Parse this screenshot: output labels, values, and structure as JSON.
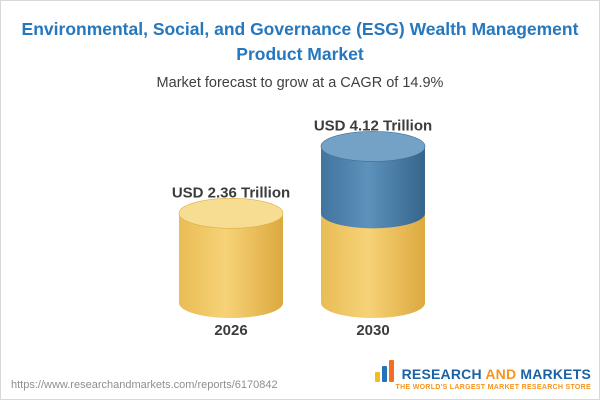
{
  "header": {
    "title_line1": "Environmental, Social, and Governance (ESG) Wealth Management",
    "title_line2": "Product Market",
    "subtitle": "Market forecast to grow at a CAGR of 14.9%"
  },
  "chart_data": {
    "type": "bar",
    "variant": "3d-cylinder",
    "title": "Environmental, Social, and Governance (ESG) Wealth Management Product Market",
    "subtitle": "Market forecast to grow at a CAGR of 14.9%",
    "categories": [
      "2026",
      "2030"
    ],
    "values": [
      2.36,
      4.12
    ],
    "value_labels": [
      "USD 2.36 Trillion",
      "USD 4.12 Trillion"
    ],
    "unit": "USD Trillion",
    "cagr": "14.9%",
    "ylim": [
      0,
      4.5
    ],
    "legend": "none",
    "grid": "off",
    "colors": {
      "base_segment": "#F0C75E",
      "base_segment_top": "#F6DD92",
      "growth_segment": "#4A7FA8",
      "growth_segment_top": "#73A2C6",
      "value_label": "#3C3C3C",
      "category_label": "#3C3C3C",
      "title": "#2577BE"
    }
  },
  "footer": {
    "url": "https://www.researchandmarkets.com/reports/6170842",
    "logo": {
      "word1": "RESEARCH",
      "word2": "AND",
      "word3": "MARKETS",
      "tagline": "THE WORLD'S LARGEST MARKET RESEARCH STORE"
    }
  }
}
